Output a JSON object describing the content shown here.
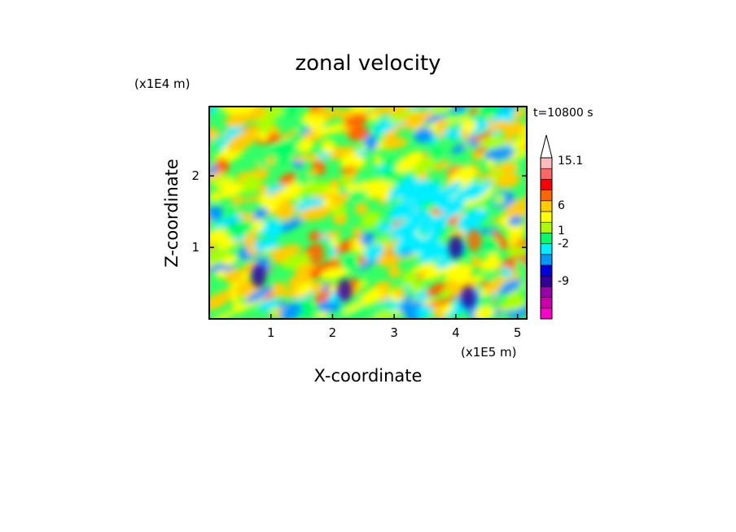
{
  "chart_data": {
    "type": "heatmap",
    "title": "zonal velocity",
    "xlabel": "X-coordinate",
    "ylabel": "Z-coordinate",
    "x_scale_label": "(x1E5 m)",
    "y_scale_label": "(x1E4 m)",
    "time_label": "t=10800 s",
    "xlim": [
      0,
      5.15
    ],
    "ylim": [
      0,
      2.97
    ],
    "x_ticks": [
      1,
      2,
      3,
      4,
      5
    ],
    "y_ticks": [
      1,
      2
    ],
    "colorbar": {
      "labeled_ticks": [
        "15.1",
        "6",
        "1",
        "-2",
        "-9"
      ],
      "colors": [
        "#ff00cc",
        "#cc00aa",
        "#9900aa",
        "#330099",
        "#0000dd",
        "#0099ff",
        "#00eeff",
        "#00ff66",
        "#aaff00",
        "#ffff00",
        "#ffcc00",
        "#ff6600",
        "#ff0000",
        "#ff6666",
        "#ffbbbb",
        "#ffffff"
      ]
    },
    "features": [
      {
        "x": 0.8,
        "z": 0.6,
        "value": "-9"
      },
      {
        "x": 1.75,
        "z": 0.9,
        "value": "6"
      },
      {
        "x": 2.2,
        "z": 0.4,
        "value": "-9"
      },
      {
        "x": 3.5,
        "z": 1.3,
        "value": "-2"
      },
      {
        "x": 4.0,
        "z": 1.0,
        "value": "-9"
      },
      {
        "x": 4.3,
        "z": 1.1,
        "value": "6"
      },
      {
        "x": 4.2,
        "z": 0.3,
        "value": "-9"
      }
    ]
  }
}
